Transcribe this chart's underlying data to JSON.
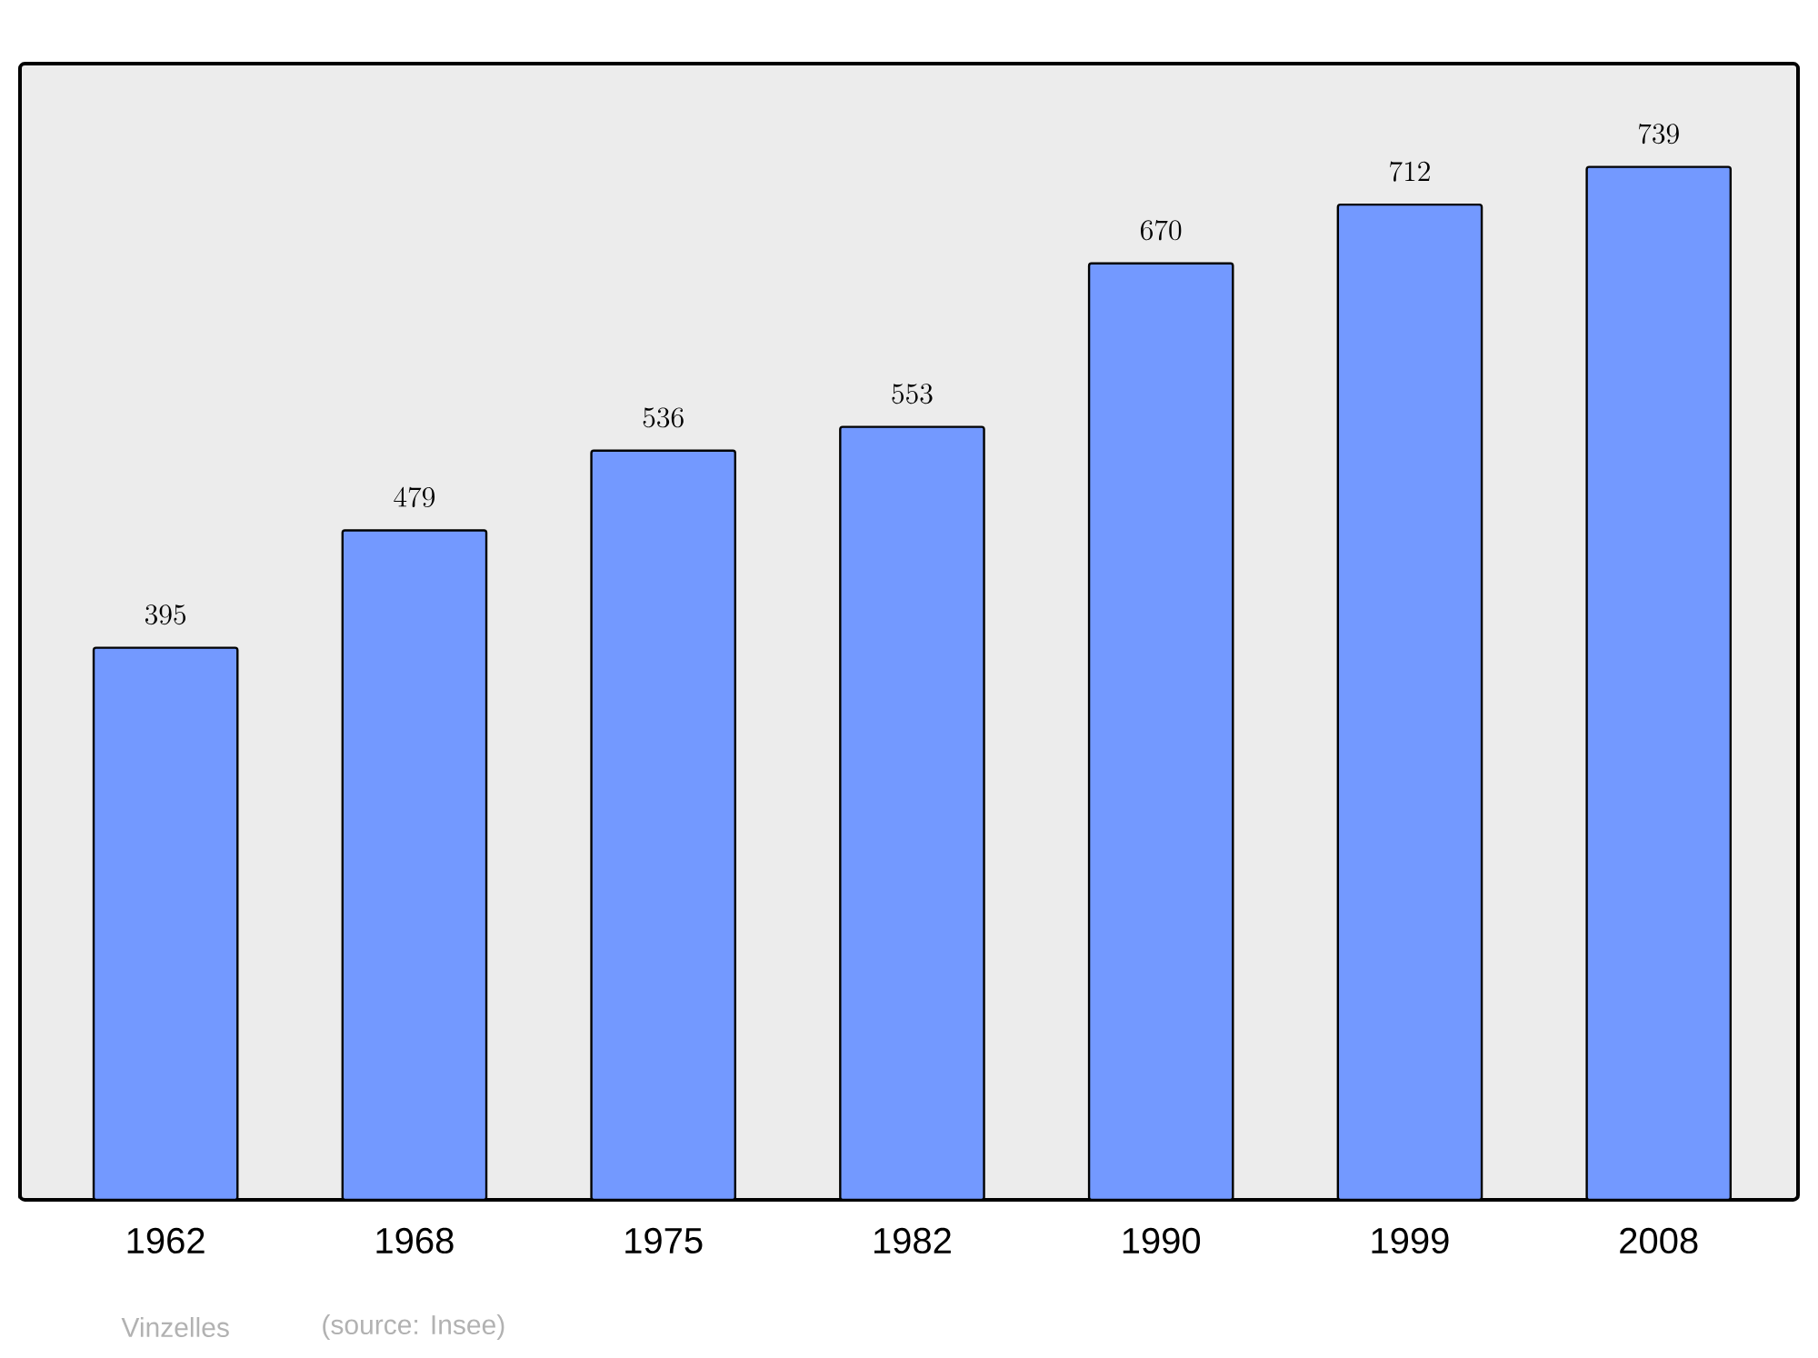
{
  "chart_data": {
    "type": "bar",
    "categories": [
      "1962",
      "1968",
      "1975",
      "1982",
      "1990",
      "1999",
      "2008"
    ],
    "values": [
      395,
      479,
      536,
      553,
      670,
      712,
      739
    ],
    "color": "#7399ff",
    "data_labels": true,
    "annotations": [
      "Vinzelles",
      "(source: Insee)"
    ]
  }
}
